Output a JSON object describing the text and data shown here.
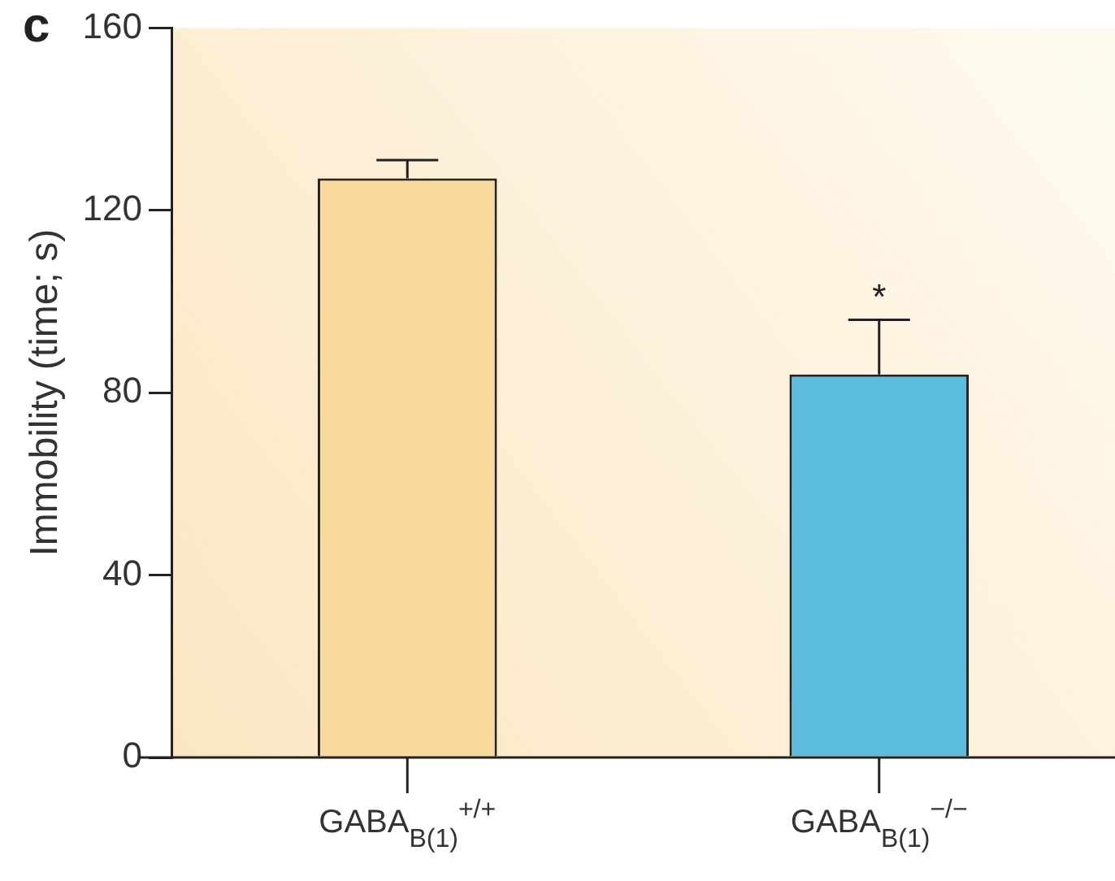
{
  "chart_data": {
    "type": "bar",
    "ylabel": "Immobility (time; s)",
    "categories": [
      "GABA$_{B(1)}$$^{+/+}$",
      "GABA$_{B(1)}$$^{−/−}$"
    ],
    "values": [
      127,
      84
    ],
    "colors": [
      "#f9d99c",
      "#5bbce0"
    ],
    "errors": [
      [
        127,
        131
      ],
      [
        84,
        96
      ]
    ],
    "ylim": [
      0,
      160
    ],
    "yticks": [
      0,
      40,
      80,
      120,
      160
    ],
    "grid": false,
    "legend": false,
    "annotations": [
      "c",
      "*"
    ]
  }
}
